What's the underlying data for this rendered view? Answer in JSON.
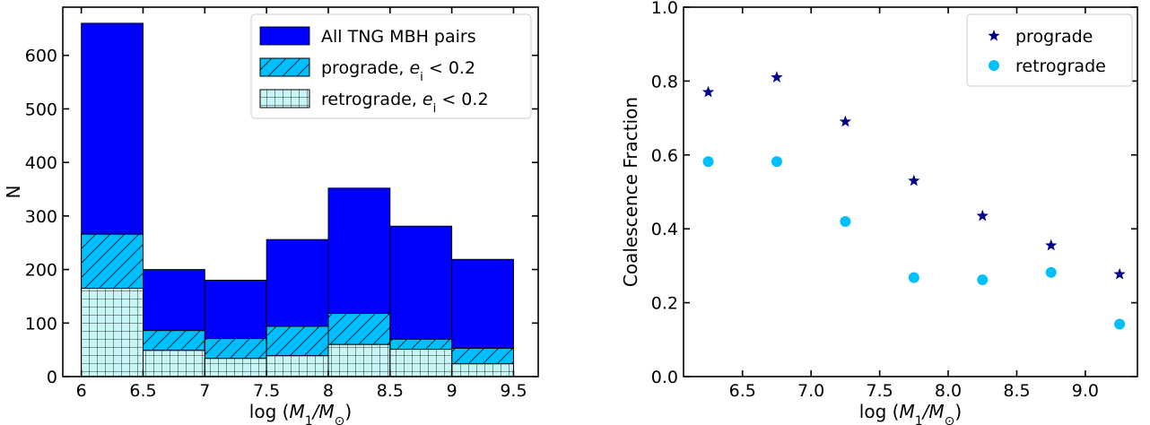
{
  "chart_data": [
    {
      "type": "bar",
      "xlabel": "log (M_1/M_⊙)",
      "ylabel": "N",
      "xlim": [
        5.85,
        9.7
      ],
      "ylim": [
        0,
        690
      ],
      "bin_edges": [
        6,
        6.5,
        7,
        7.5,
        8,
        8.5,
        9,
        9.5
      ],
      "xticks": [
        6,
        6.5,
        7,
        7.5,
        8,
        8.5,
        9,
        9.5
      ],
      "xtick_labels": [
        "6",
        "6.5",
        "7",
        "7.5",
        "8",
        "8.5",
        "9",
        "9.5"
      ],
      "yticks": [
        0,
        100,
        200,
        300,
        400,
        500,
        600
      ],
      "ytick_labels": [
        "0",
        "100",
        "200",
        "300",
        "400",
        "500",
        "600"
      ],
      "series": [
        {
          "name": "All TNG MBH pairs",
          "color": "#0000ff",
          "hatch": "none",
          "values": [
            660,
            200,
            180,
            256,
            352,
            281,
            219
          ]
        },
        {
          "name": "prograde, e_i < 0.2",
          "color": "#00bfff",
          "hatch": "diagonal",
          "values": [
            266,
            86,
            71,
            94,
            118,
            70,
            53
          ]
        },
        {
          "name": "retrograde, e_i < 0.2",
          "color": "#c8f5f5",
          "hatch": "grid",
          "values": [
            165,
            49,
            34,
            39,
            60,
            51,
            24
          ]
        }
      ],
      "legend_position": "top-right",
      "grid": false
    },
    {
      "type": "scatter",
      "xlabel": "log (M_1/M_⊙)",
      "ylabel": "Coalescence Fraction",
      "xlim": [
        6.07,
        9.38
      ],
      "ylim": [
        0.0,
        1.0
      ],
      "xticks": [
        6.5,
        7.0,
        7.5,
        8.0,
        8.5,
        9.0
      ],
      "xtick_labels": [
        "6.5",
        "7.0",
        "7.5",
        "8.0",
        "8.5",
        "9.0"
      ],
      "yticks": [
        0.0,
        0.2,
        0.4,
        0.6,
        0.8,
        1.0
      ],
      "ytick_labels": [
        "0.0",
        "0.2",
        "0.4",
        "0.6",
        "0.8",
        "1.0"
      ],
      "series": [
        {
          "name": "prograde",
          "marker": "star",
          "color": "#00008b",
          "x": [
            6.25,
            6.75,
            7.25,
            7.75,
            8.25,
            8.75,
            9.25
          ],
          "y": [
            0.77,
            0.81,
            0.69,
            0.53,
            0.435,
            0.355,
            0.277
          ]
        },
        {
          "name": "retrograde",
          "marker": "circle",
          "color": "#00bfff",
          "x": [
            6.25,
            6.75,
            7.25,
            7.75,
            8.25,
            8.75,
            9.25
          ],
          "y": [
            0.582,
            0.582,
            0.42,
            0.268,
            0.262,
            0.282,
            0.142
          ]
        }
      ],
      "legend_position": "top-right",
      "grid": false
    }
  ]
}
